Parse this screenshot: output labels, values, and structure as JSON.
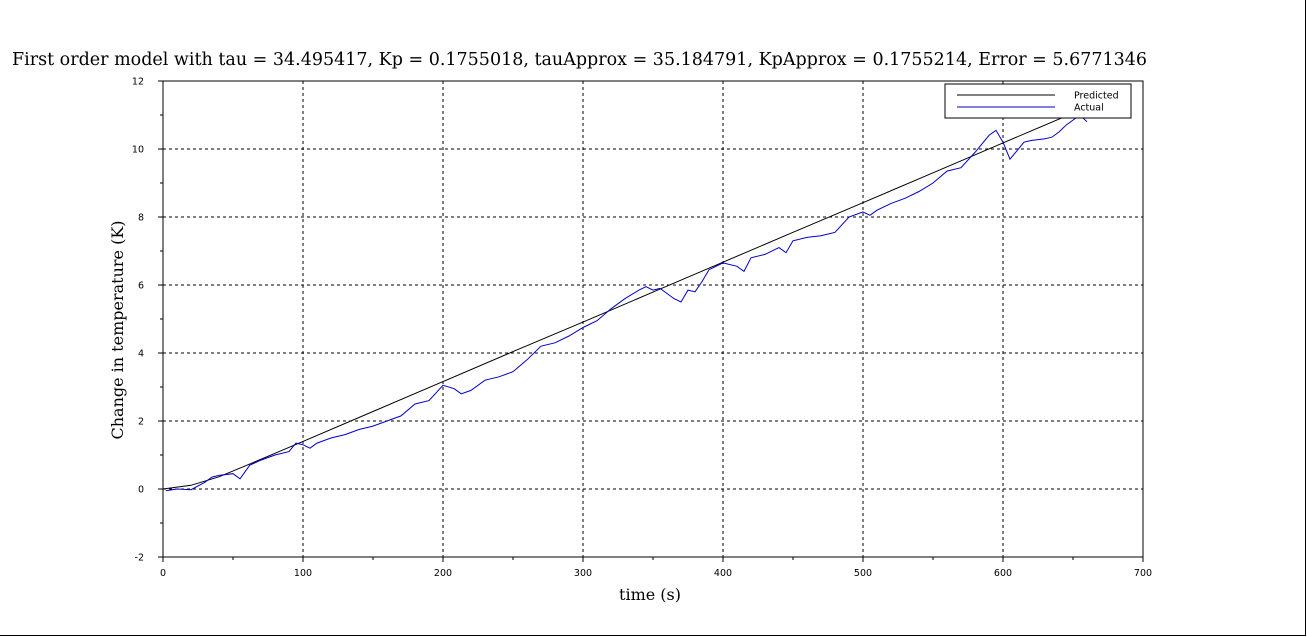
{
  "chart_data": {
    "type": "line",
    "title": "First order model with tau = 34.495417, Kp = 0.1755018, tauApprox = 35.184791, KpApprox = 0.1755214, Error = 5.6771346",
    "xlabel": "time (s)",
    "ylabel": "Change in temperature (K)",
    "xlim": [
      0,
      700
    ],
    "ylim": [
      -2,
      12
    ],
    "xticks": [
      0,
      100,
      200,
      300,
      400,
      500,
      600,
      700
    ],
    "yticks": [
      -2,
      0,
      2,
      4,
      6,
      8,
      10,
      12
    ],
    "grid": true,
    "legend_position": "top-right",
    "series": [
      {
        "name": "Predicted",
        "color": "#000000",
        "x": [
          0,
          20,
          40,
          60,
          80,
          100,
          150,
          200,
          250,
          300,
          350,
          400,
          450,
          500,
          550,
          600,
          660
        ],
        "y": [
          0,
          0.11,
          0.36,
          0.7,
          1.05,
          1.4,
          2.28,
          3.16,
          4.04,
          4.91,
          5.79,
          6.67,
          7.55,
          8.42,
          9.3,
          10.18,
          11.23
        ]
      },
      {
        "name": "Actual",
        "color": "#0000cc",
        "x": [
          2,
          10,
          20,
          30,
          35,
          40,
          50,
          55,
          62,
          70,
          80,
          90,
          95,
          100,
          105,
          110,
          120,
          130,
          140,
          150,
          160,
          170,
          180,
          190,
          200,
          208,
          213,
          220,
          230,
          240,
          250,
          260,
          270,
          280,
          290,
          300,
          310,
          320,
          330,
          340,
          345,
          350,
          355,
          360,
          365,
          370,
          375,
          380,
          385,
          390,
          400,
          410,
          415,
          420,
          430,
          440,
          445,
          450,
          460,
          470,
          480,
          490,
          500,
          505,
          510,
          520,
          530,
          540,
          550,
          560,
          570,
          580,
          590,
          595,
          600,
          605,
          610,
          615,
          620,
          630,
          635,
          640,
          645,
          650,
          655,
          660
        ],
        "y": [
          -0.05,
          0.0,
          -0.02,
          0.2,
          0.35,
          0.4,
          0.45,
          0.3,
          0.7,
          0.85,
          1.0,
          1.1,
          1.35,
          1.3,
          1.2,
          1.35,
          1.5,
          1.6,
          1.75,
          1.85,
          2.0,
          2.15,
          2.5,
          2.6,
          3.05,
          2.95,
          2.8,
          2.9,
          3.2,
          3.3,
          3.45,
          3.8,
          4.2,
          4.3,
          4.5,
          4.75,
          4.95,
          5.3,
          5.6,
          5.85,
          5.95,
          5.85,
          5.9,
          5.75,
          5.6,
          5.5,
          5.85,
          5.8,
          6.1,
          6.45,
          6.65,
          6.55,
          6.4,
          6.8,
          6.9,
          7.1,
          6.95,
          7.3,
          7.4,
          7.45,
          7.55,
          8.0,
          8.15,
          8.05,
          8.2,
          8.4,
          8.55,
          8.75,
          9.0,
          9.35,
          9.45,
          9.9,
          10.4,
          10.55,
          10.2,
          9.7,
          9.95,
          10.2,
          10.25,
          10.3,
          10.35,
          10.5,
          10.7,
          10.85,
          11.0,
          10.8
        ]
      }
    ]
  }
}
